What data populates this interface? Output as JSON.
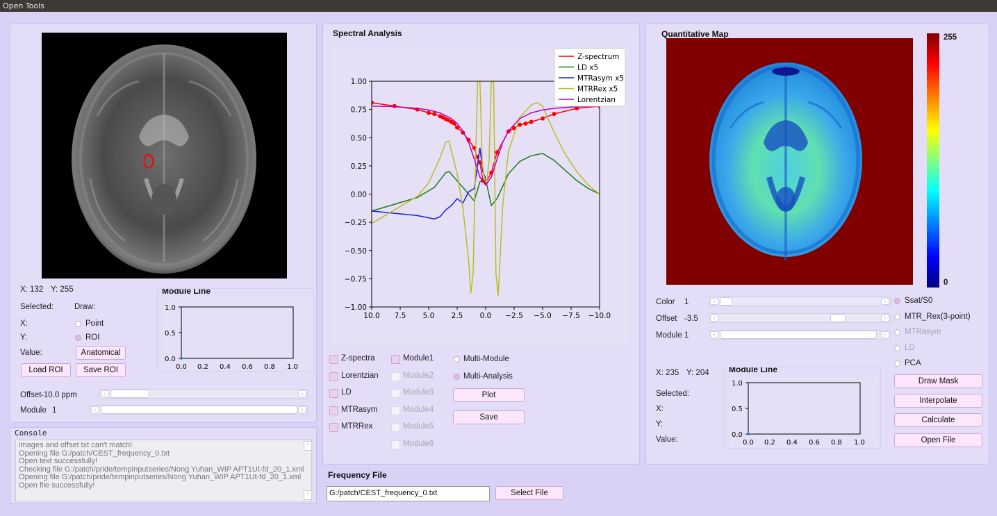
{
  "window": {
    "title": "Open Tools"
  },
  "left": {
    "coords": {
      "x_label": "X: 132",
      "y_label": "Y: 255"
    },
    "selected_label": "Selected:",
    "draw_label": "Draw:",
    "x_label": "X:",
    "y_label": "Y:",
    "value_label": "Value:",
    "point_label": "Point",
    "roi_label": "ROI",
    "anatomical_button": "Anatomical",
    "load_roi_button": "Load ROI",
    "save_roi_button": "Save ROI",
    "offset_label": "Offset",
    "offset_value": "-10.0 ppm",
    "module_label": "Module",
    "module_value": "1",
    "module_line": {
      "title": "Module Line",
      "y_ticks": [
        "1.0",
        "0.5",
        "0.0"
      ],
      "x_ticks": [
        "0.0",
        "0.2",
        "0.4",
        "0.6",
        "0.8",
        "1.0"
      ]
    }
  },
  "console": {
    "title": "Console",
    "lines": [
      "images and offset txt can't match!",
      "Opening file G:/patch/CEST_frequency_0.txt",
      "Open text successfully!",
      "Checking file G:/patch/pride/tempinputseries/Nong Yuhan_WIP APT1Ut-fd_20_1.xml",
      "Opening file G:/patch/pride/tempinputseries/Nong Yuhan_WIP APT1Ut-fd_20_1.xml",
      "Open file successfully!"
    ]
  },
  "spectral": {
    "title": "Spectral Analysis",
    "checks": [
      {
        "label": "Z-spectra",
        "checked": true
      },
      {
        "label": "Lorentzian",
        "checked": true
      },
      {
        "label": "LD",
        "checked": true
      },
      {
        "label": "MTRasym",
        "checked": true
      },
      {
        "label": "MTRRex",
        "checked": true
      }
    ],
    "modules": [
      {
        "label": "Module1",
        "enabled": true
      },
      {
        "label": "Module2",
        "enabled": false
      },
      {
        "label": "Module3",
        "enabled": false
      },
      {
        "label": "Module4",
        "enabled": false
      },
      {
        "label": "Module5",
        "enabled": false
      },
      {
        "label": "Module6",
        "enabled": false
      }
    ],
    "multi_module_label": "Multi-Module",
    "multi_analysis_label": "Multi-Analysis",
    "plot_button": "Plot",
    "save_button": "Save"
  },
  "chart_data": {
    "type": "line",
    "xlim": [
      10.0,
      -10.0
    ],
    "ylim": [
      -1.0,
      1.0
    ],
    "x_ticks": [
      "10.0",
      "7.5",
      "5.0",
      "2.5",
      "0.0",
      "−2.5",
      "−5.0",
      "−7.5",
      "−10.0"
    ],
    "y_ticks": [
      "1.00",
      "0.75",
      "0.50",
      "0.25",
      "0.00",
      "−0.25",
      "−0.50",
      "−0.75",
      "−1.00"
    ],
    "legend_position": "top-right",
    "series": [
      {
        "name": "Z-spectrum",
        "color": "#ff0000",
        "markers": true,
        "x": [
          10,
          8,
          6,
          5,
          4.5,
          4,
          3.75,
          3.5,
          3.25,
          3,
          2.75,
          2.5,
          2,
          1.5,
          1,
          0.75,
          0.5,
          0.25,
          0,
          -0.5,
          -1,
          -2,
          -2.5,
          -3,
          -3.5,
          -4,
          -5,
          -6,
          -8,
          -10
        ],
        "y": [
          0.81,
          0.78,
          0.75,
          0.72,
          0.71,
          0.69,
          0.68,
          0.665,
          0.655,
          0.64,
          0.625,
          0.59,
          0.545,
          0.48,
          0.41,
          0.33,
          0.28,
          0.12,
          0.1,
          0.19,
          0.37,
          0.555,
          0.585,
          0.615,
          0.625,
          0.64,
          0.67,
          0.71,
          0.76,
          0.78
        ]
      },
      {
        "name": "LD x5",
        "color": "#1a7a1a",
        "x": [
          10,
          8,
          6,
          4.5,
          3.5,
          3.2,
          2.7,
          2,
          1.5,
          1.0,
          0.5,
          0,
          -0.5,
          -1,
          -2,
          -3,
          -4,
          -5,
          -6,
          -7,
          -8,
          -9,
          -10
        ],
        "y": [
          -0.15,
          -0.09,
          -0.03,
          0.06,
          0.19,
          0.2,
          0.14,
          0.06,
          0.0,
          -0.06,
          0.11,
          0.13,
          -0.1,
          -0.04,
          0.18,
          0.29,
          0.34,
          0.36,
          0.3,
          0.21,
          0.12,
          0.05,
          0.0
        ]
      },
      {
        "name": "MTRasym x5",
        "color": "#1a1aee",
        "x": [
          10,
          8,
          6,
          5,
          4.5,
          4,
          3.5,
          3.0,
          2.5,
          2,
          1.5,
          1,
          0.5,
          0.25,
          0
        ],
        "y": [
          -0.15,
          -0.17,
          -0.19,
          -0.21,
          -0.22,
          -0.2,
          -0.14,
          -0.1,
          -0.04,
          -0.08,
          0.02,
          0.05,
          0.41,
          0.2,
          0.14
        ]
      },
      {
        "name": "MTRRex x5",
        "color": "#bcbc20",
        "x": [
          10,
          8,
          6,
          5,
          4,
          3.5,
          3.2,
          3,
          2.5,
          2,
          1.5,
          1.3,
          1.1,
          0.9,
          0.7,
          0.5,
          0.3,
          0.1,
          -0.1,
          -0.3,
          -0.5,
          -0.7,
          -0.9,
          -1.1,
          -1.3,
          -1.5,
          -2,
          -3,
          -4,
          -4.5,
          -5,
          -6,
          -7,
          -8,
          -9,
          -10
        ],
        "y": [
          -0.26,
          -0.14,
          -0.02,
          0.1,
          0.32,
          0.46,
          0.47,
          0.38,
          0.18,
          -0.12,
          -0.58,
          -0.88,
          -0.7,
          0.2,
          1.0,
          1.0,
          0.28,
          0.13,
          0.1,
          0.3,
          1.0,
          1.0,
          -0.7,
          -0.9,
          -0.5,
          -0.1,
          0.38,
          0.68,
          0.79,
          0.81,
          0.78,
          0.55,
          0.35,
          0.2,
          0.08,
          0.0
        ]
      },
      {
        "name": "Lorentzian",
        "color": "#bb00bb",
        "x": [
          10,
          8,
          6,
          5,
          4,
          3,
          2.5,
          2,
          1.5,
          1,
          0.5,
          0,
          -0.5,
          -1,
          -1.5,
          -2,
          -3,
          -4,
          -5,
          -6,
          -8,
          -10
        ],
        "y": [
          0.78,
          0.775,
          0.76,
          0.745,
          0.72,
          0.67,
          0.625,
          0.56,
          0.46,
          0.31,
          0.15,
          0.08,
          0.15,
          0.31,
          0.46,
          0.56,
          0.67,
          0.72,
          0.745,
          0.76,
          0.775,
          0.78
        ]
      }
    ]
  },
  "quant": {
    "title": "Quantitative Map",
    "colorbar_max": "255",
    "colorbar_min": "0",
    "color_label": "Color",
    "color_value": "1",
    "offset_label": "Offset",
    "offset_value": "-3.5",
    "module_label": "Module",
    "module_value": "1",
    "coords": {
      "x_label": "X: 235",
      "y_label": "Y: 204"
    },
    "selected_label": "Selected:",
    "x_label": "X:",
    "y_label": "Y:",
    "value_label": "Value:",
    "options": [
      {
        "label": "Ssat/S0",
        "enabled": true,
        "selected": true
      },
      {
        "label": "MTR_Rex(3-point)",
        "enabled": true,
        "selected": false
      },
      {
        "label": "MTRasym",
        "enabled": false,
        "selected": false
      },
      {
        "label": "LD",
        "enabled": false,
        "selected": false
      },
      {
        "label": "PCA",
        "enabled": true,
        "selected": false
      }
    ],
    "draw_mask_button": "Draw Mask",
    "interpolate_button": "Interpolate",
    "calculate_button": "Calculate",
    "open_file_button": "Open File",
    "module_line": {
      "title": "Module Line",
      "y_ticks": [
        "1.0",
        "0.5",
        "0.0"
      ],
      "x_ticks": [
        "0.0",
        "0.2",
        "0.4",
        "0.6",
        "0.8",
        "1.0"
      ]
    }
  },
  "frequency": {
    "title": "Frequency File",
    "input_value": "G:/patch/CEST_frequency_0.txt",
    "select_button": "Select File"
  }
}
